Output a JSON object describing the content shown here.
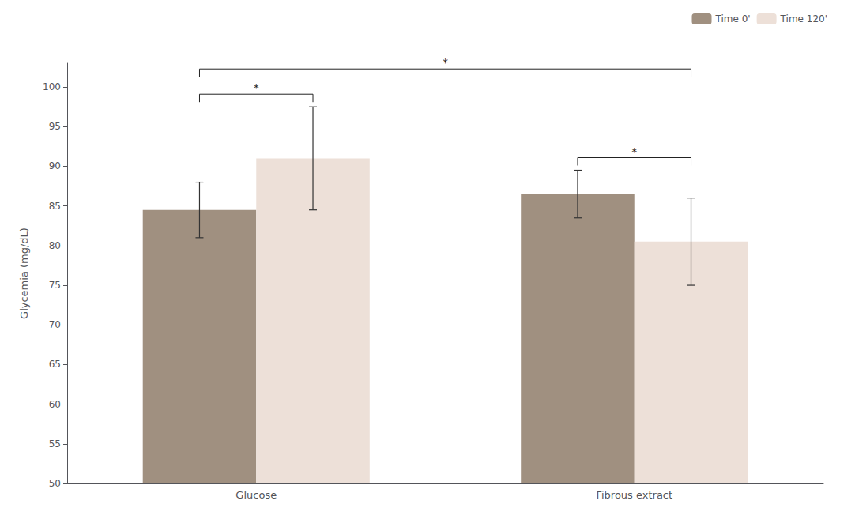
{
  "chart_data": {
    "type": "bar",
    "categories": [
      "Glucose",
      "Fibrous extract"
    ],
    "series": [
      {
        "name": "Time 0'",
        "color": "#a09080",
        "values": [
          84.5,
          86.5
        ],
        "errors": [
          3.5,
          3.0
        ]
      },
      {
        "name": "Time 120'",
        "color": "#ede0d8",
        "values": [
          91.0,
          80.5
        ],
        "errors": [
          6.5,
          5.5
        ]
      }
    ],
    "ylabel": "Glycemia (mg/dL)",
    "ylim": [
      50,
      103
    ],
    "yticks": [
      50,
      55,
      60,
      65,
      70,
      75,
      80,
      85,
      90,
      95,
      100
    ],
    "grid": false,
    "legend": "upper right",
    "annotations": [
      {
        "text": "*",
        "from": [
          "Glucose",
          "Time 0'"
        ],
        "to": [
          "Glucose",
          "Time 120'"
        ]
      },
      {
        "text": "*",
        "from": [
          "Fibrous extract",
          "Time 0'"
        ],
        "to": [
          "Fibrous extract",
          "Time 120'"
        ]
      },
      {
        "text": "*",
        "from": [
          "Glucose",
          "Time 0'"
        ],
        "to": [
          "Fibrous extract",
          "Time 120'"
        ]
      }
    ]
  }
}
